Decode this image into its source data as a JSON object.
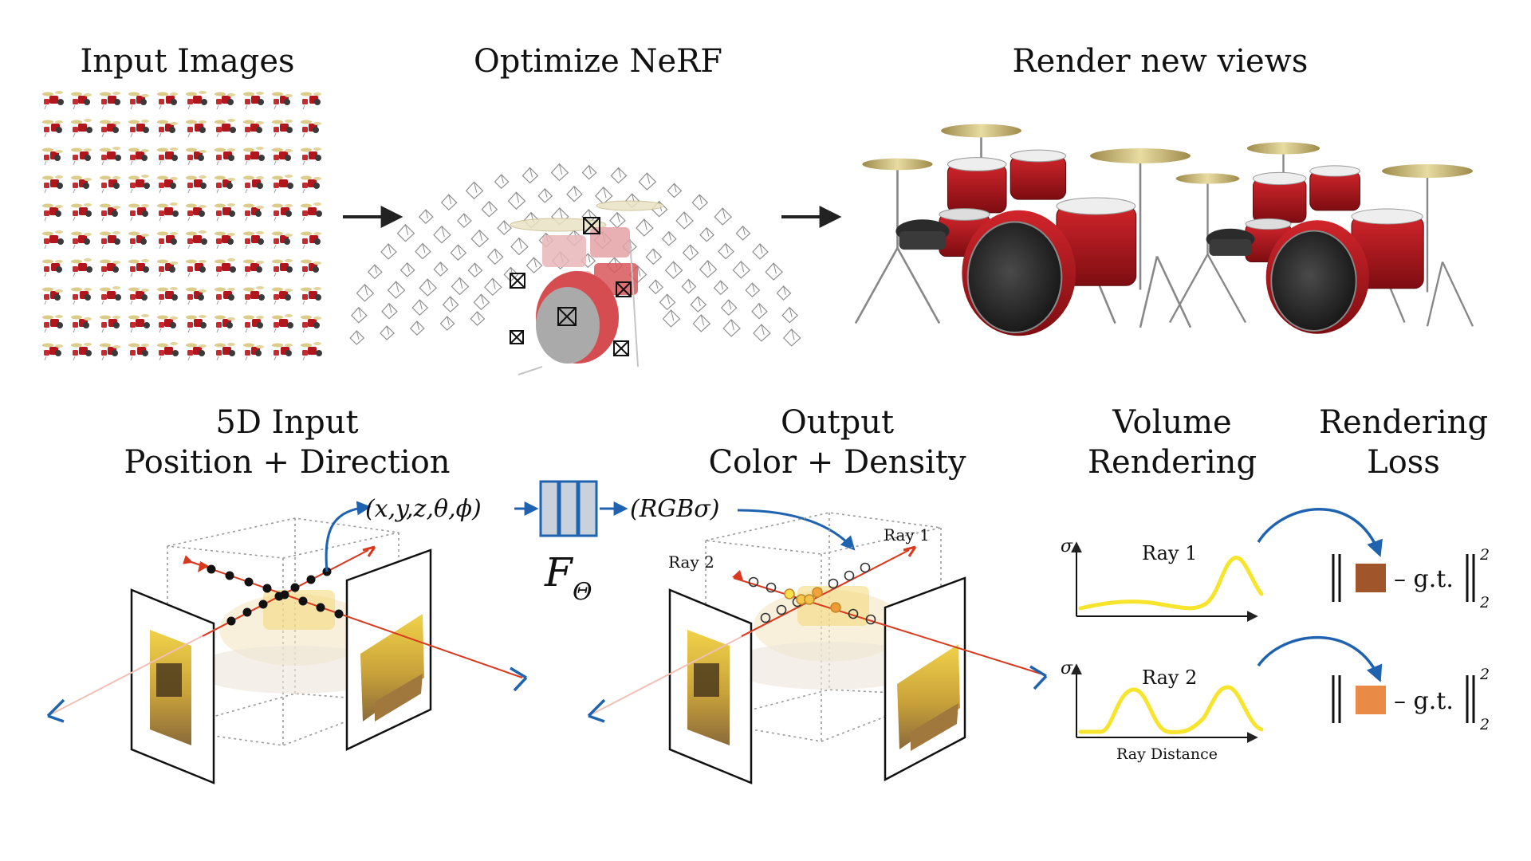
{
  "titles": {
    "input_images": "Input Images",
    "optimize": "Optimize NeRF",
    "render_views": "Render new views",
    "input5d_line1": "5D Input",
    "input5d_line2": "Position + Direction",
    "output_line1": "Output",
    "output_line2": "Color + Density",
    "volume_line1": "Volume",
    "volume_line2": "Rendering",
    "loss_line1": "Rendering",
    "loss_line2": "Loss"
  },
  "network": {
    "input_tuple": "(x,y,z,θ,ϕ)",
    "output_tuple": "(RGBσ)",
    "function_symbol": "F",
    "function_subscript": "Θ"
  },
  "rays": {
    "ray1": "Ray 1",
    "ray2": "Ray 2"
  },
  "plots": {
    "sigma": "σ",
    "ray1_title": "Ray 1",
    "ray2_title": "Ray 2",
    "xlabel": "Ray Distance"
  },
  "loss": {
    "gt_text": "– g.t.",
    "exp_sup": "2",
    "exp_sub": "2",
    "ray1_color": "#a0552b",
    "ray2_color": "#ea8a47"
  },
  "colors": {
    "drum_red": "#b0161c",
    "arrow_blue": "#1f63b0",
    "ray_red": "#d93a1f",
    "curve_yellow": "#f6e42d",
    "network_fill": "#c9d2dc",
    "network_stroke": "#1f63b0"
  }
}
